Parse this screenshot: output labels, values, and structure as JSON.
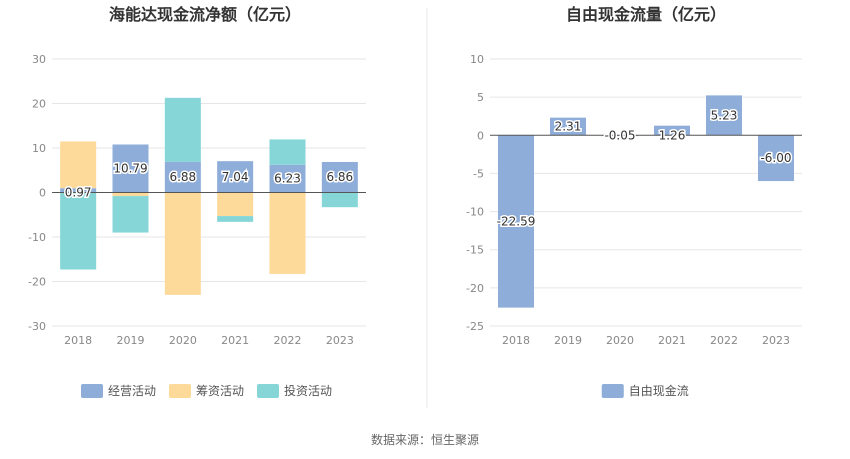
{
  "colors": {
    "operating": "#8EADD9",
    "financing": "#FDD99A",
    "investing": "#86D6D8",
    "fcf": "#8EADD9",
    "grid": "#E6E6E6",
    "zero_line": "#555555",
    "axis_text": "#888888",
    "title_text": "#333333",
    "divider": "#E8E8E8"
  },
  "source_text": "数据来源：恒生聚源",
  "chart_data": [
    {
      "type": "bar",
      "stacked": true,
      "title": "海能达现金流净额（亿元）",
      "xlabel": "",
      "ylabel": "",
      "categories": [
        "2018",
        "2019",
        "2020",
        "2021",
        "2022",
        "2023"
      ],
      "ylim": [
        -30,
        30
      ],
      "yticks": [
        30,
        20,
        10,
        0,
        -10,
        -20,
        -30
      ],
      "grid": true,
      "legend_position": "bottom",
      "series": [
        {
          "name": "经营活动",
          "color_key": "operating",
          "values": [
            0.97,
            10.79,
            6.88,
            7.04,
            6.23,
            6.86
          ]
        },
        {
          "name": "筹资活动",
          "color_key": "financing",
          "values": [
            10.5,
            -0.8,
            -23.0,
            -5.3,
            -18.3,
            0.0
          ]
        },
        {
          "name": "投资活动",
          "color_key": "investing",
          "values": [
            -17.3,
            -8.2,
            14.4,
            -1.3,
            5.7,
            -3.3
          ]
        }
      ],
      "data_labels": [
        "0.97",
        "10.79",
        "6.88",
        "7.04",
        "6.23",
        "6.86"
      ]
    },
    {
      "type": "bar",
      "title": "自由现金流量（亿元）",
      "xlabel": "",
      "ylabel": "",
      "categories": [
        "2018",
        "2019",
        "2020",
        "2021",
        "2022",
        "2023"
      ],
      "ylim": [
        -25,
        10
      ],
      "yticks": [
        10,
        5,
        0,
        -5,
        -10,
        -15,
        -20,
        -25
      ],
      "grid": true,
      "legend_position": "bottom",
      "series": [
        {
          "name": "自由现金流",
          "color_key": "fcf",
          "values": [
            -22.59,
            2.31,
            -0.05,
            1.26,
            5.23,
            -6.0
          ]
        }
      ],
      "data_labels": [
        "-22.59",
        "2.31",
        "-0.05",
        "1.26",
        "5.23",
        "-6.00"
      ]
    }
  ]
}
